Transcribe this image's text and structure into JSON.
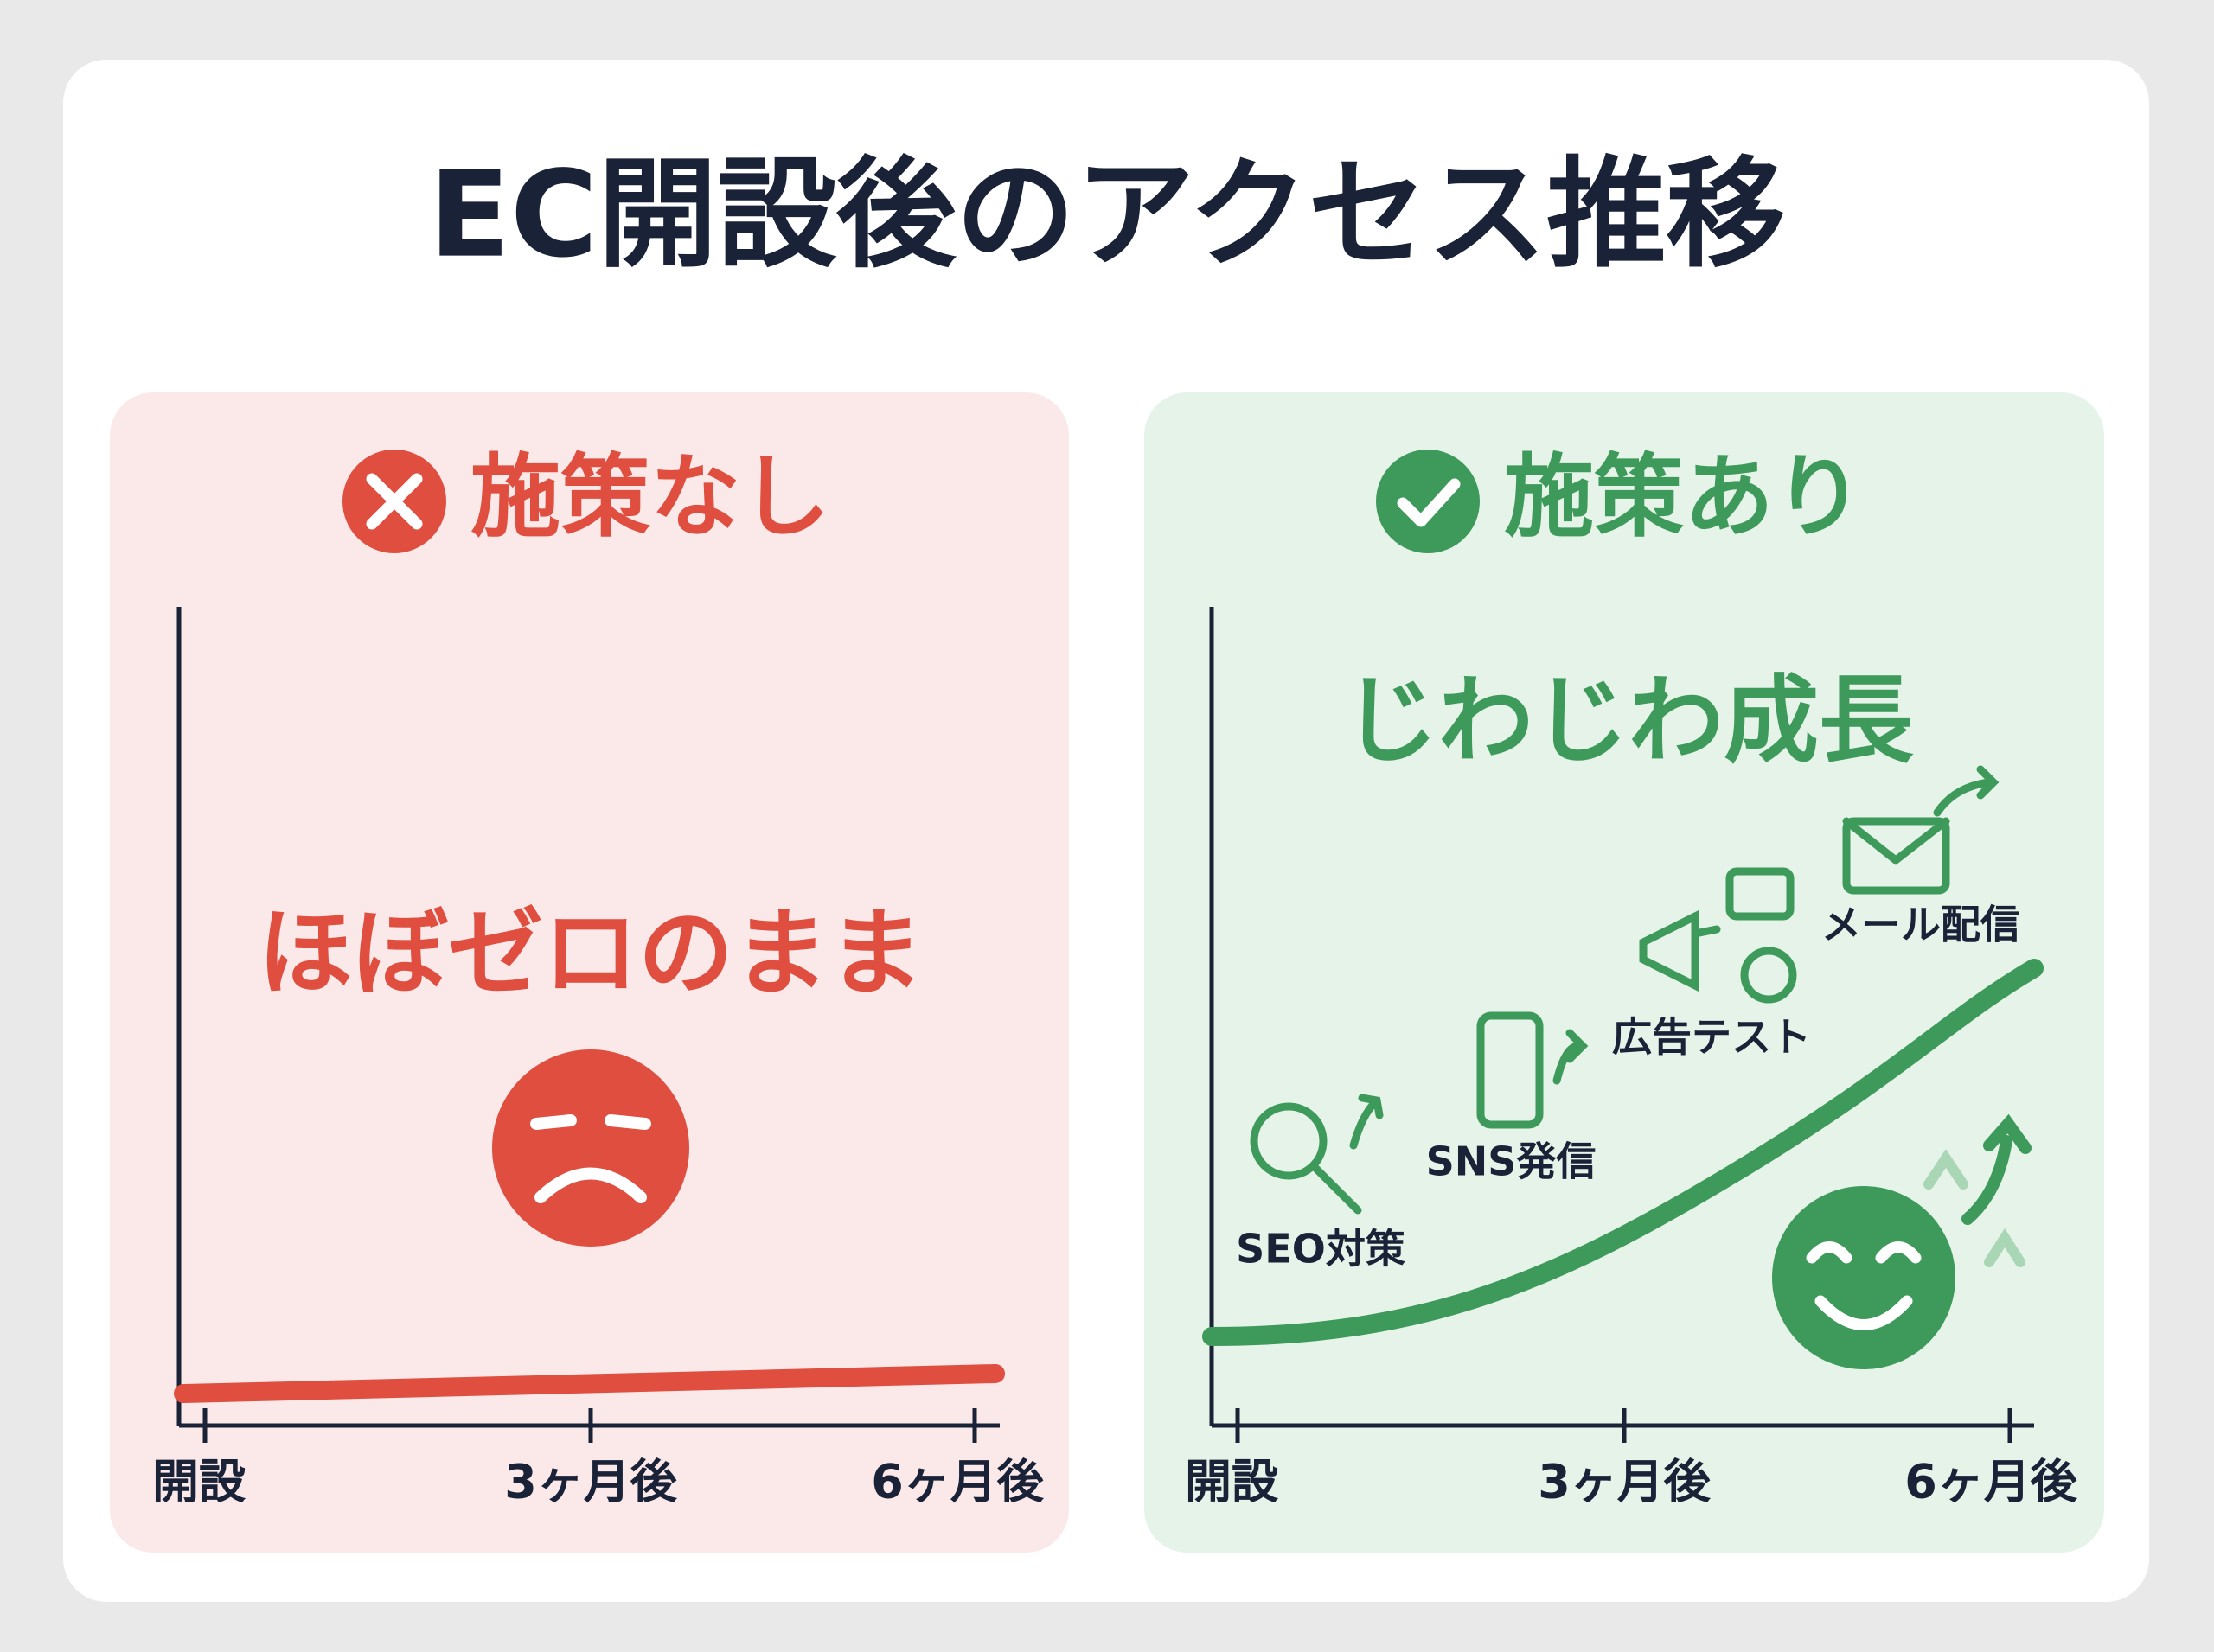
{
  "title": "EC開設後のアクセス推移",
  "panels": [
    {
      "heading": "施策なし",
      "caption": "ほぼゼロのまま",
      "x_labels": [
        "開設",
        "3ヶ月後",
        "6ヶ月後"
      ]
    },
    {
      "heading": "施策あり",
      "caption": "じわじわ成長",
      "tactics": [
        "SEO対策",
        "SNS発信",
        "広告テスト",
        "メール配信"
      ],
      "x_labels": [
        "開設",
        "3ヶ月後",
        "6ヶ月後"
      ]
    }
  ]
}
